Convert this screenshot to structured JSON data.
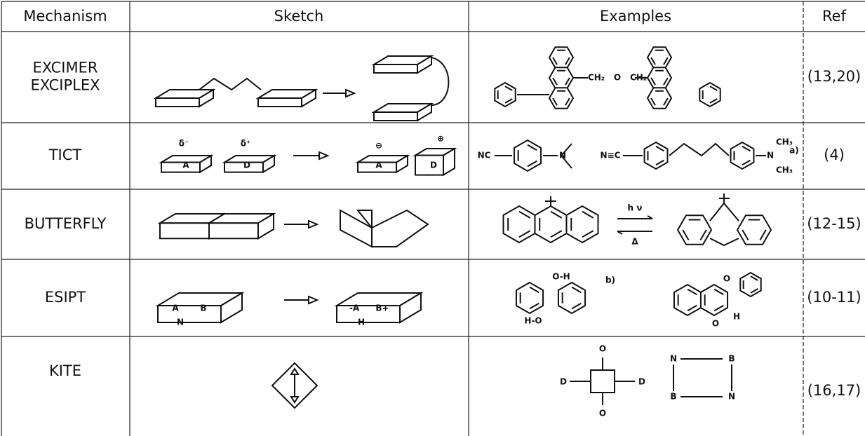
{
  "table": {
    "header": [
      "Mechanism",
      "Sketch",
      "Examples",
      "Ref"
    ],
    "rows": [
      {
        "mechanism": [
          "EXCIMER",
          "EXCIPLEX"
        ],
        "sketch_labels": [],
        "example_labels": [
          "CH₂",
          "O",
          "CH₂"
        ],
        "ref": "(13,20)"
      },
      {
        "mechanism": [
          "TICT"
        ],
        "sketch_labels": [
          "δ⁻",
          "δ⁺",
          "A",
          "D",
          "⊖",
          "A",
          "D",
          "⊕"
        ],
        "example_labels": [
          "NC",
          "N",
          "N≡C",
          "N",
          "CH₃",
          "CH₃",
          "a)"
        ],
        "ref": "(4)"
      },
      {
        "mechanism": [
          "BUTTERFLY"
        ],
        "sketch_labels": [],
        "example_labels": [
          "h ν",
          "Δ"
        ],
        "ref": "(12-15)"
      },
      {
        "mechanism": [
          "ESIPT"
        ],
        "sketch_labels": [
          "A",
          "B",
          "N",
          "-A",
          "B+",
          "H"
        ],
        "example_labels": [
          "O-H",
          "b)",
          "H-O",
          "O",
          "O",
          "H"
        ],
        "ref": "(10-11)"
      },
      {
        "mechanism": [
          "KITE"
        ],
        "sketch_labels": [],
        "example_labels": [
          "O",
          "O",
          "D",
          "D",
          "N",
          "B",
          "B",
          "N"
        ],
        "ref": "(16,17)"
      }
    ]
  }
}
